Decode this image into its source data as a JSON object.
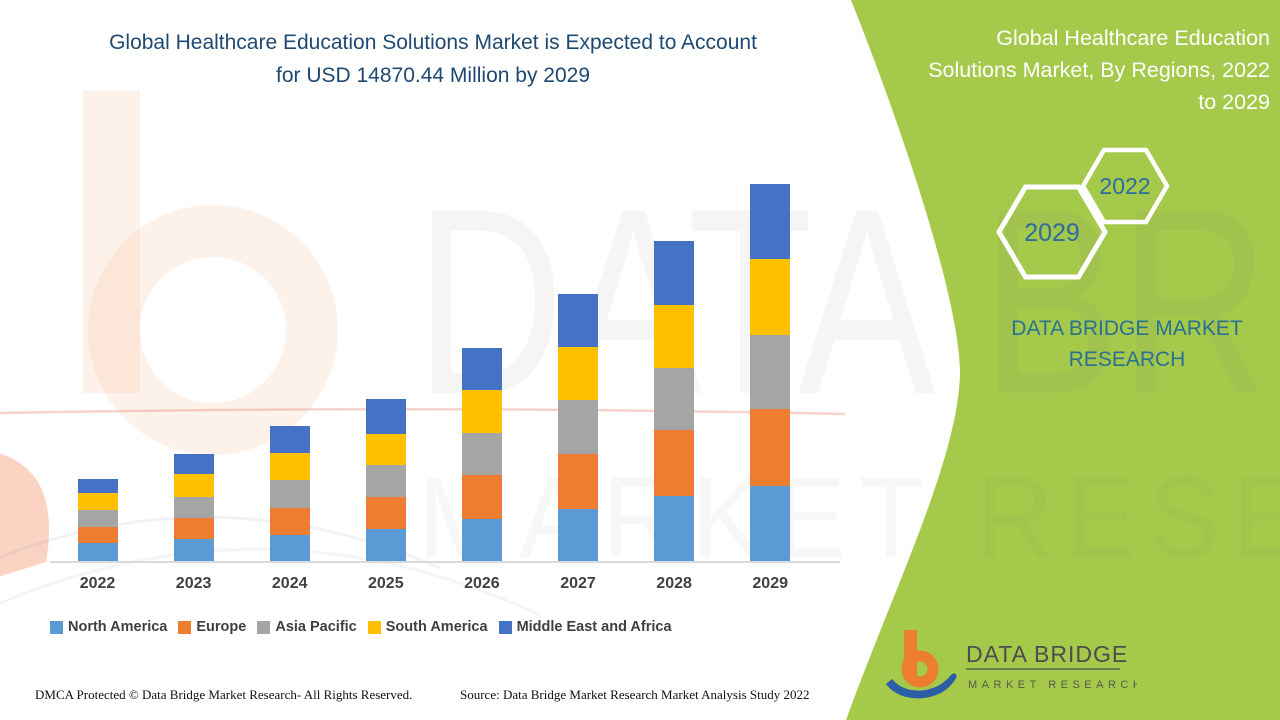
{
  "header": {
    "title": "Global Healthcare Education Solutions Market is Expected to Account for USD 14870.44 Million by 2029"
  },
  "side_panel": {
    "title": "Global Healthcare Education Solutions Market, By Regions, 2022 to 2029",
    "hexagon_years": [
      "2029",
      "2022"
    ],
    "brand_name": "DATA BRIDGE MARKET RESEARCH",
    "logo": {
      "name": "DATA BRIDGE",
      "tagline": "MARKET RESEARCH"
    },
    "colors": {
      "background_green": "#A5C94B",
      "brand_teal": "#2A7191",
      "hexagon_year_blue": "#2D6C9C",
      "title_navy": "#1F4971"
    }
  },
  "watermarks": {
    "center_text": "DATA BRIDGE",
    "band_text": "MARKET RESEARCH"
  },
  "chart_data": {
    "type": "bar",
    "stacked": true,
    "unit": "USD Million",
    "title": "Global Healthcare Education Solutions Market, By Regions, 2022 to 2029",
    "categories": [
      "2022",
      "2023",
      "2024",
      "2025",
      "2026",
      "2027",
      "2028",
      "2029"
    ],
    "series": [
      {
        "name": "North America",
        "color": "#5B9BD5",
        "values": [
          698,
          855,
          1037,
          1273,
          1640,
          2061,
          2562,
          2958
        ]
      },
      {
        "name": "Europe",
        "color": "#ED7D31",
        "values": [
          654,
          851,
          1052,
          1249,
          1773,
          2168,
          2601,
          3022
        ]
      },
      {
        "name": "Asia Pacific",
        "color": "#A5A5A5",
        "values": [
          658,
          816,
          1092,
          1249,
          1643,
          2140,
          2459,
          2942
        ]
      },
      {
        "name": "South America",
        "color": "#FFC000",
        "values": [
          682,
          918,
          1076,
          1245,
          1683,
          2065,
          2467,
          3006
        ]
      },
      {
        "name": "Middle East and Africa",
        "color": "#4472C4",
        "values": [
          540,
          776,
          1064,
          1356,
          1679,
          2112,
          2522,
          2942.44
        ]
      }
    ],
    "total_2029": 14870.44,
    "y_axis_visible": false,
    "x_label_color": "#404040",
    "baseline_color": "#D9D9D9",
    "legend_position": "bottom"
  },
  "footer": {
    "left": "DMCA Protected © Data Bridge Market Research- All Rights Reserved.",
    "right": "Source: Data Bridge Market Research Market Analysis Study 2022"
  }
}
